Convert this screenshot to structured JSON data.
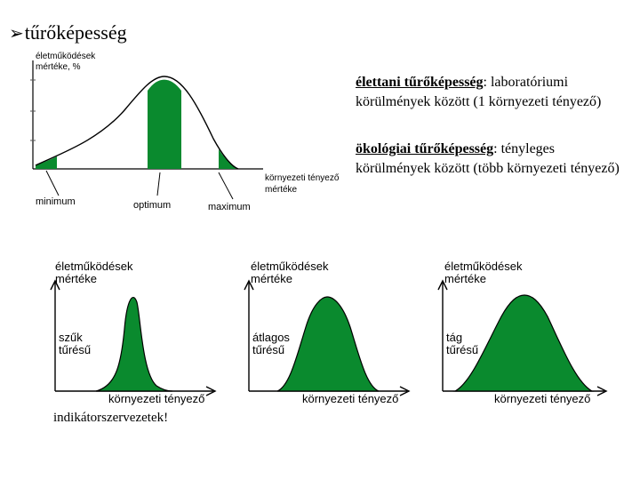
{
  "title": "tűrőképesség",
  "icons": {
    "bullet": "arrow-bullet-icon"
  },
  "main_chart": {
    "ylabel_line1": "életműködések",
    "ylabel_line2": "mértéke, %",
    "xlabel_line1": "környezeti tényező",
    "xlabel_line2": "mértéke",
    "label_minimum": "minimum",
    "label_optimum": "optimum",
    "label_maximum": "maximum"
  },
  "descriptions": [
    {
      "term": "élettani tűrőképesség",
      "text": ": laboratóriumi körülmények között (1 környezeti tényező)"
    },
    {
      "term": "ökológiai tűrőképesség",
      "text": ": tényleges körülmények között (több környezeti tényező)"
    }
  ],
  "small_charts": [
    {
      "ylabel_line1": "életműködések",
      "ylabel_line2": "mértéke",
      "inner_line1": "szűk",
      "inner_line2": "tűrésű",
      "xlabel": "környezeti tényező"
    },
    {
      "ylabel_line1": "életműködések",
      "ylabel_line2": "mértéke",
      "inner_line1": "átlagos",
      "inner_line2": "tűrésű",
      "xlabel": "környezeti tényező"
    },
    {
      "ylabel_line1": "életműködések",
      "ylabel_line2": "mértéke",
      "inner_line1": "tág",
      "inner_line2": "tűrésű",
      "xlabel": "környezeti tényező"
    }
  ],
  "note": "indikátorszervezetek!",
  "colors": {
    "fill": "#0a8a2e",
    "axis": "#000000",
    "tick": "#888888"
  }
}
